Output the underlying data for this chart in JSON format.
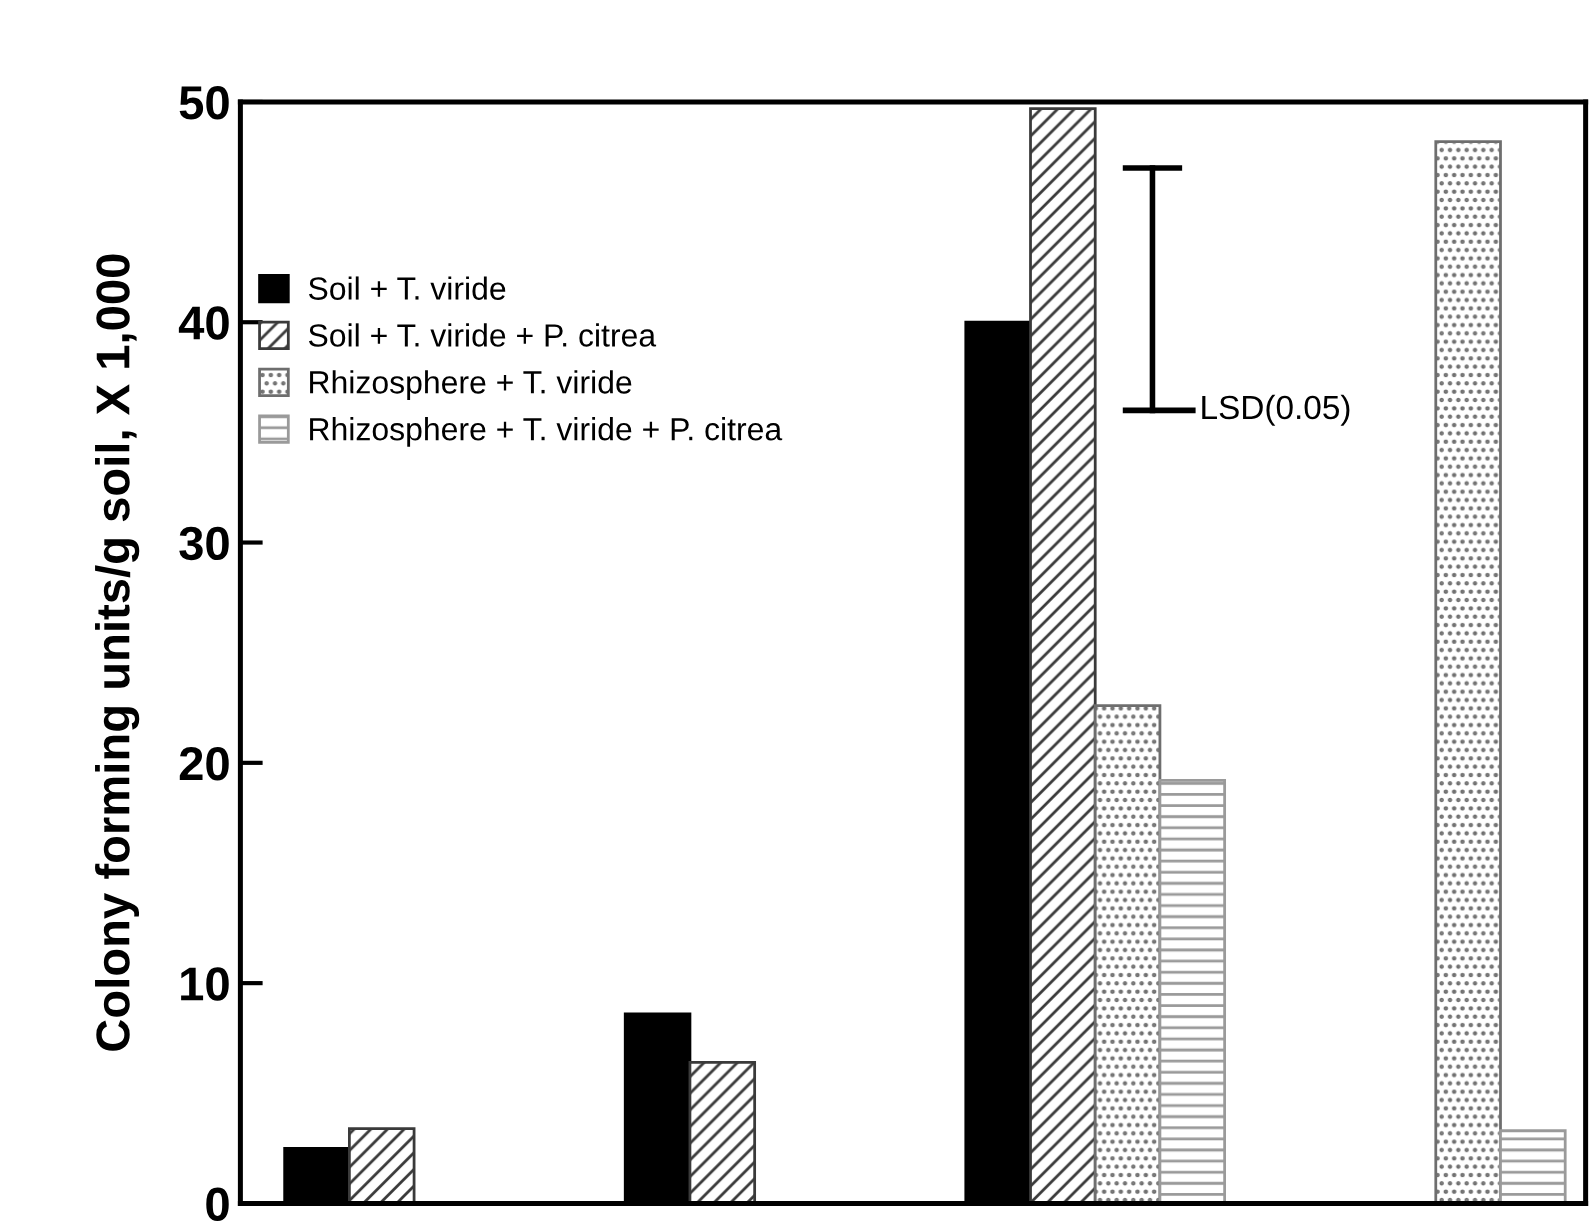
{
  "chart_data": {
    "type": "bar",
    "ylabel": "Colony forming units/g soil, X 1,000",
    "categories": [
      null,
      null,
      null,
      null
    ],
    "series": [
      {
        "name": "Soil + T. viride",
        "color": "#000000",
        "values": [
          2.5,
          8.6,
          40.0,
          null
        ]
      },
      {
        "name": "Soil + T. viride + P. citrea",
        "color": "#3a3a3a",
        "values": [
          3.4,
          6.4,
          49.7,
          null
        ]
      },
      {
        "name": "Rhizosphere + T. viride",
        "color": "#6e6e6e",
        "values": [
          null,
          null,
          22.6,
          48.2
        ]
      },
      {
        "name": "Rhizosphere + T. viride + P. citrea",
        "color": "#9a9a9a",
        "values": [
          null,
          null,
          19.2,
          3.3
        ]
      }
    ],
    "ylim": [
      0,
      50
    ],
    "yticks": [
      0,
      10,
      20,
      30,
      40,
      50
    ],
    "annotations": [
      "LSD(0.05)"
    ],
    "legend": "top left",
    "grid": false
  }
}
